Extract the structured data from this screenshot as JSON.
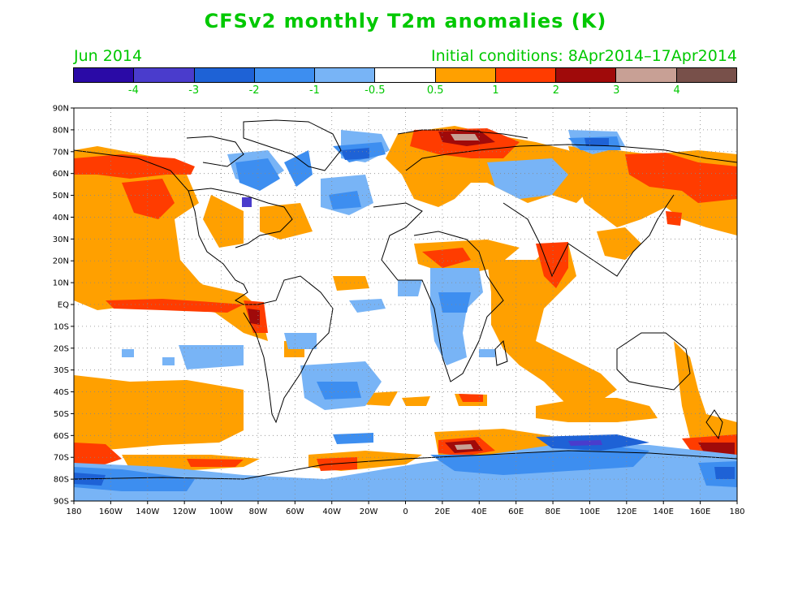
{
  "title": "CFSv2 monthly T2m anomalies (K)",
  "subtitle_left": "Jun 2014",
  "subtitle_right": "Initial conditions: 8Apr2014–17Apr2014",
  "colorbar": {
    "colors": [
      "#2a0aa6",
      "#4a3ccc",
      "#1e62d6",
      "#3d8ef0",
      "#78b4f6",
      "#ffffff",
      "#ffa000",
      "#ff3c00",
      "#a00a0a",
      "#c8a095",
      "#78504a"
    ],
    "labels": [
      "-4",
      "-3",
      "-2",
      "-1",
      "-0.5",
      "0.5",
      "1",
      "2",
      "3",
      "4"
    ]
  },
  "map": {
    "y_labels": [
      "90N",
      "80N",
      "70N",
      "60N",
      "50N",
      "40N",
      "30N",
      "20N",
      "10N",
      "EQ",
      "10S",
      "20S",
      "30S",
      "40S",
      "50S",
      "60S",
      "70S",
      "80S",
      "90S"
    ],
    "x_labels": [
      "180",
      "160W",
      "140W",
      "120W",
      "100W",
      "80W",
      "60W",
      "40W",
      "20W",
      "0",
      "20E",
      "40E",
      "60E",
      "80E",
      "100E",
      "120E",
      "140E",
      "160E",
      "180"
    ]
  },
  "anomaly_regions": [
    {
      "level": "0.5 to 1",
      "color": "#ffa000",
      "areas": [
        "northeast Pacific",
        "eastern tropical Pacific",
        "South Pacific",
        "North Atlantic midlatitudes",
        "Arabia",
        "India",
        "Indian Ocean",
        "northern Eurasia",
        "western North Pacific"
      ]
    },
    {
      "level": "1 to 2",
      "color": "#ff3c00",
      "areas": [
        "Alaska",
        "Bering Sea",
        "Pacific equatorial belt",
        "northern Russia",
        "Antarctic coast"
      ]
    },
    {
      "level": "2 to 3",
      "color": "#a00a0a",
      "areas": [
        "Barents Sea",
        "Southern Ocean"
      ]
    },
    {
      "level": "-0.5 to -1",
      "color": "#78b4f6",
      "areas": [
        "central Africa",
        "South Atlantic",
        "Antarctica",
        "Siberia"
      ]
    },
    {
      "level": "-1 to -2",
      "color": "#3d8ef0",
      "areas": [
        "Hudson Bay",
        "Greenland",
        "Antarctica"
      ]
    },
    {
      "level": "-2 to -3",
      "color": "#1e62d6",
      "areas": [
        "Antarctic interior",
        "eastern Siberia"
      ]
    }
  ]
}
